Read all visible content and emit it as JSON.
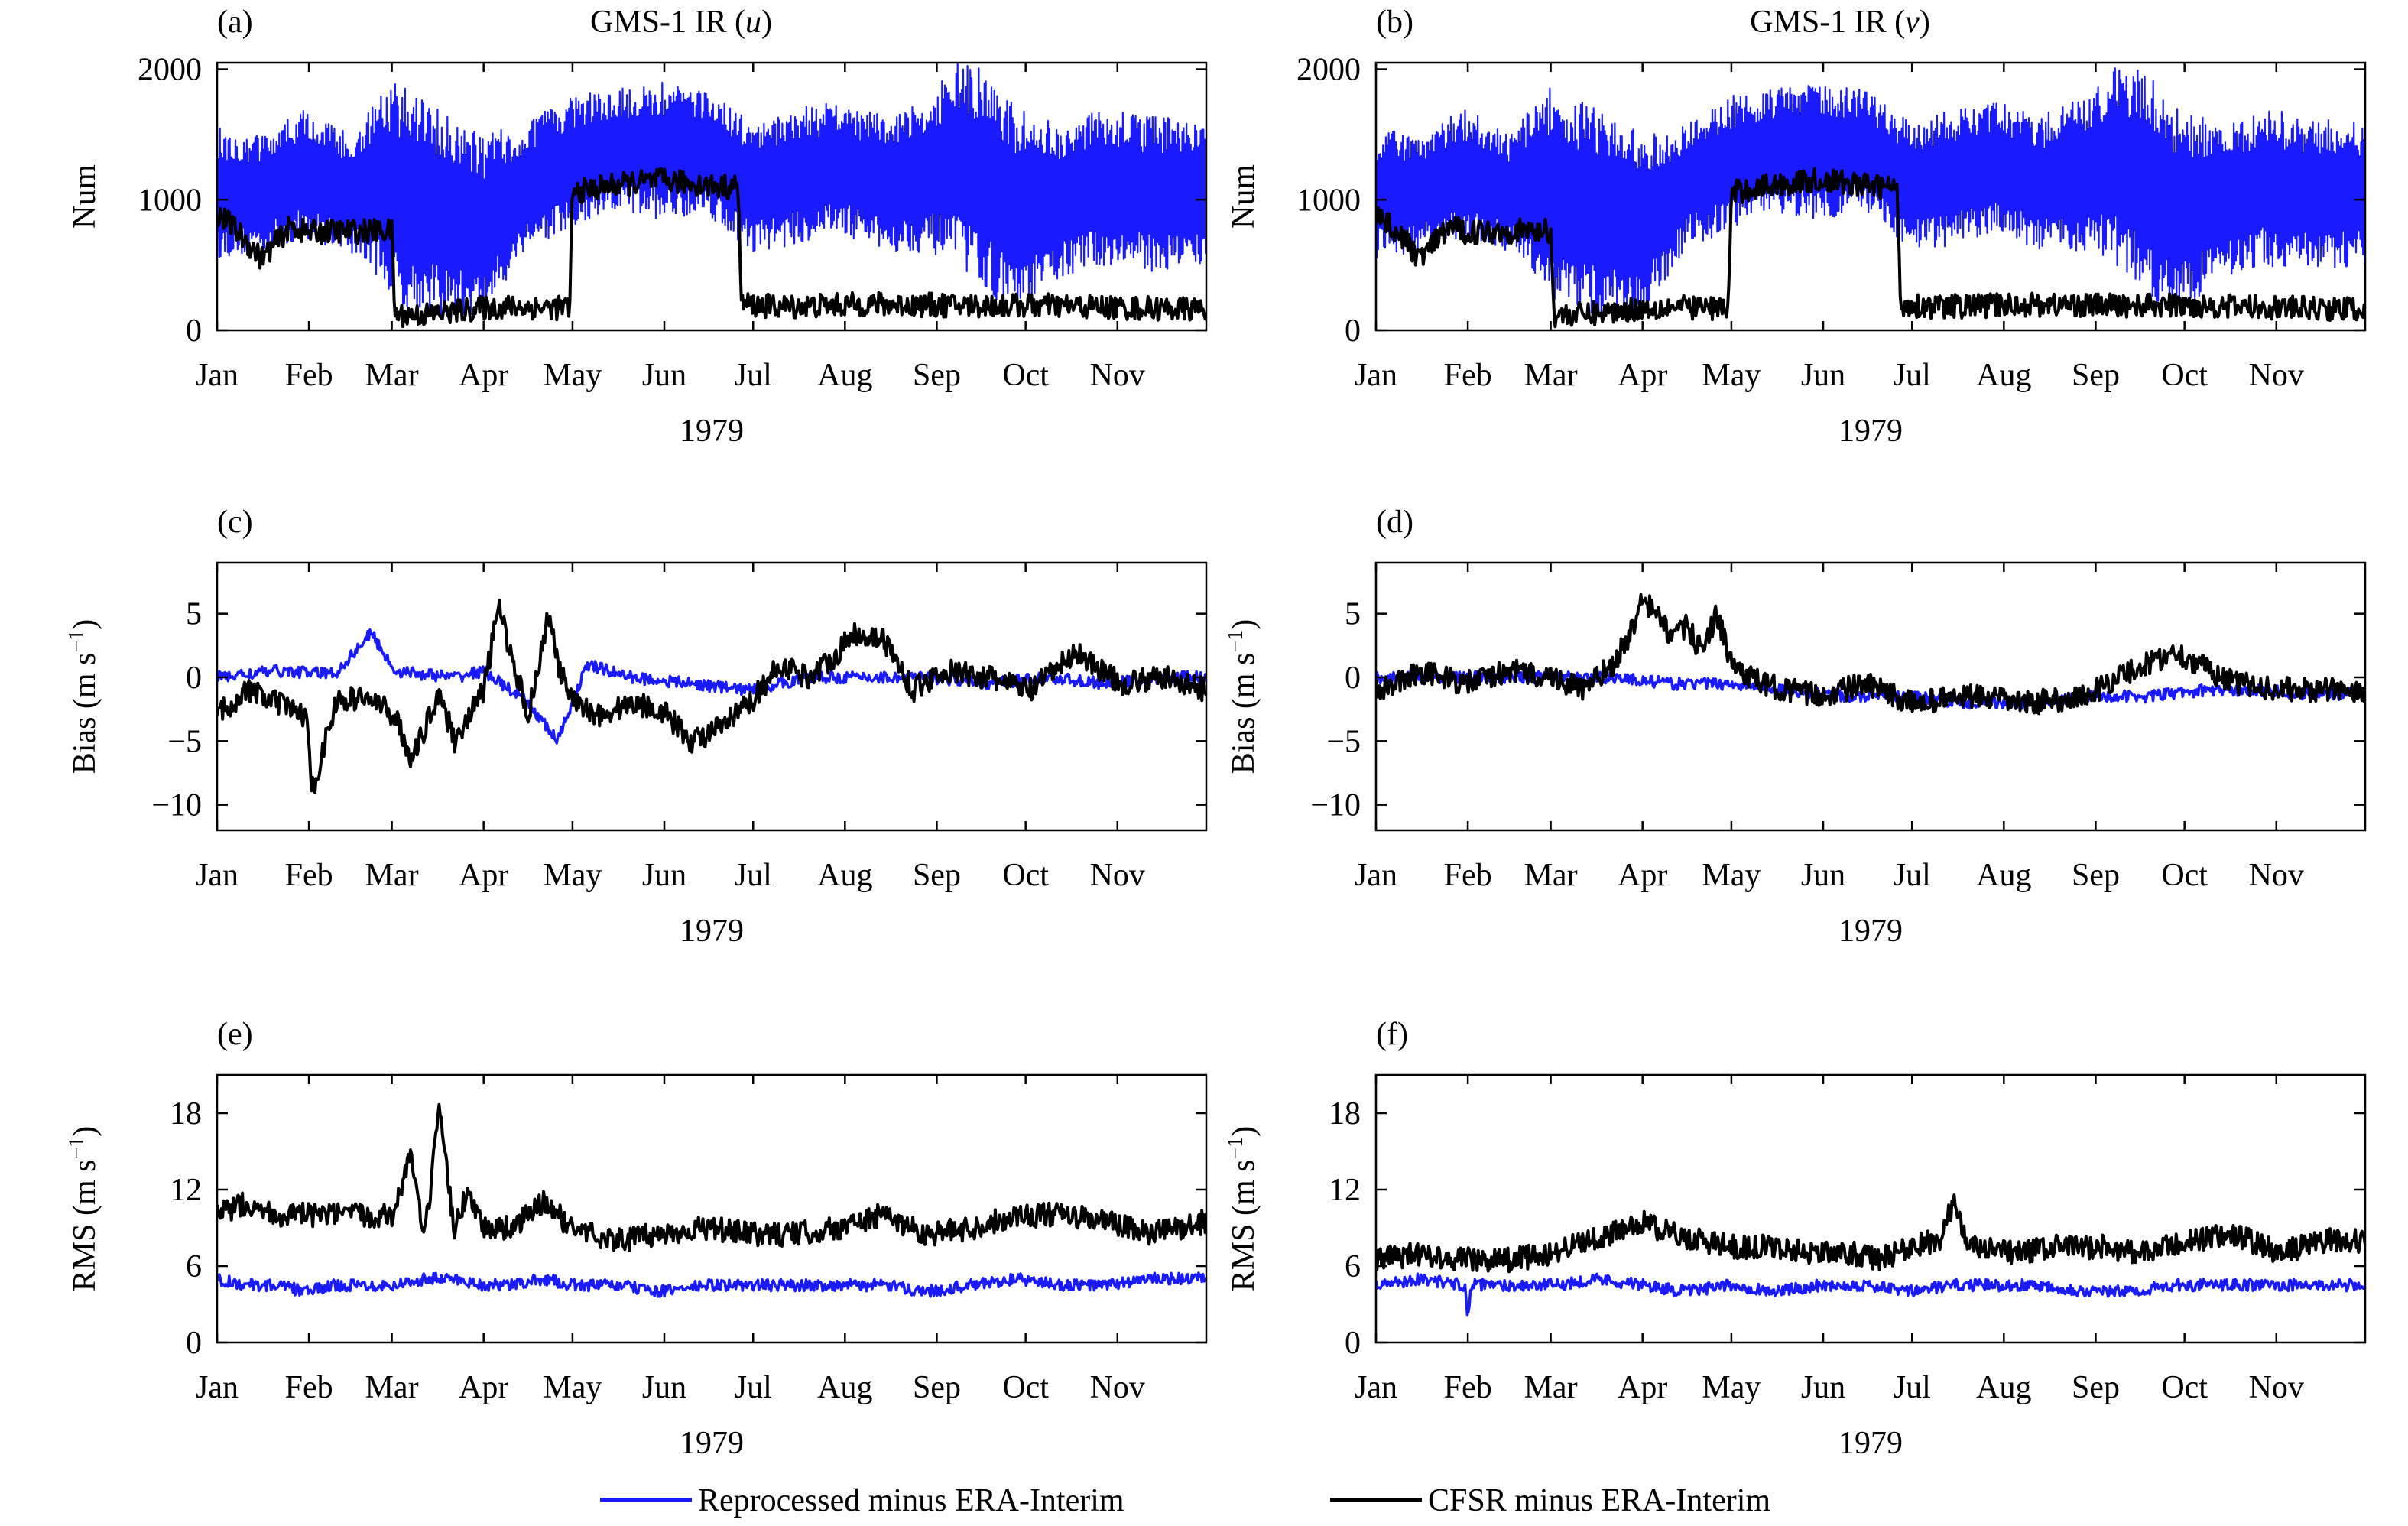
{
  "figure": {
    "year_label": "1979"
  },
  "colors": {
    "reprocessed": "#1a1aff",
    "cfsr": "#000000"
  },
  "legend": [
    {
      "label": "Reprocessed minus ERA-Interim",
      "color": "#1a1aff"
    },
    {
      "label": "CFSR minus ERA-Interim",
      "color": "#000000"
    }
  ],
  "chart_data": [
    {
      "panel": "(a)",
      "title": "GMS-1 IR (",
      "title_var": "u",
      "title_end": ")",
      "type": "line",
      "ylabel": "Num",
      "xlabel": "1979",
      "ylim": [
        0,
        2050
      ],
      "yticks": [
        0,
        1000,
        2000
      ],
      "xlim": [
        0,
        334
      ],
      "xtick_days": [
        0,
        31,
        59,
        90,
        120,
        151,
        181,
        212,
        243,
        273,
        304
      ],
      "xtick_labels": [
        "Jan",
        "Feb",
        "Mar",
        "Apr",
        "May",
        "Jun",
        "Jul",
        "Aug",
        "Sep",
        "Oct",
        "Nov"
      ],
      "series": [
        {
          "key": "reprocessed",
          "x": [
            0,
            15,
            30,
            45,
            55,
            60,
            75,
            90,
            105,
            120,
            135,
            150,
            165,
            180,
            195,
            210,
            225,
            240,
            250,
            260,
            270,
            285,
            300,
            315,
            334
          ],
          "y_low": [
            550,
            600,
            700,
            600,
            400,
            200,
            100,
            100,
            650,
            750,
            900,
            850,
            900,
            600,
            650,
            750,
            600,
            600,
            500,
            300,
            100,
            400,
            500,
            450,
            500
          ],
          "y_high": [
            1550,
            1500,
            1700,
            1500,
            1800,
            1900,
            1700,
            1500,
            1600,
            1800,
            1850,
            1900,
            1850,
            1600,
            1700,
            1750,
            1650,
            1800,
            2050,
            2000,
            1700,
            1600,
            1700,
            1650,
            1600
          ]
        },
        {
          "key": "cfsr",
          "x": [
            0,
            5,
            15,
            25,
            30,
            40,
            50,
            59,
            60,
            70,
            90,
            100,
            119,
            120,
            130,
            150,
            170,
            176,
            177,
            190,
            220,
            250,
            280,
            310,
            334
          ],
          "y": [
            900,
            800,
            550,
            800,
            750,
            760,
            760,
            760,
            120,
            120,
            170,
            180,
            170,
            1050,
            1100,
            1150,
            1100,
            1100,
            200,
            180,
            200,
            190,
            190,
            170,
            160
          ]
        }
      ]
    },
    {
      "panel": "(b)",
      "title": "GMS-1 IR (",
      "title_var": "v",
      "title_end": ")",
      "type": "line",
      "ylabel": "Num",
      "xlabel": "1979",
      "ylim": [
        0,
        2050
      ],
      "yticks": [
        0,
        1000,
        2000
      ],
      "xlim": [
        0,
        334
      ],
      "xtick_days": [
        0,
        31,
        59,
        90,
        120,
        151,
        181,
        212,
        243,
        273,
        304
      ],
      "xtick_labels": [
        "Jan",
        "Feb",
        "Mar",
        "Apr",
        "May",
        "Jun",
        "Jul",
        "Aug",
        "Sep",
        "Oct",
        "Nov"
      ],
      "series": [
        {
          "key": "reprocessed",
          "x": [
            0,
            15,
            30,
            45,
            55,
            60,
            75,
            90,
            105,
            120,
            135,
            150,
            165,
            180,
            195,
            210,
            225,
            240,
            250,
            260,
            270,
            285,
            300,
            315,
            334
          ],
          "y_low": [
            550,
            600,
            700,
            600,
            400,
            200,
            100,
            100,
            650,
            750,
            900,
            850,
            900,
            600,
            650,
            750,
            600,
            600,
            500,
            300,
            100,
            400,
            500,
            450,
            500
          ],
          "y_high": [
            1550,
            1500,
            1700,
            1500,
            1800,
            1900,
            1700,
            1500,
            1600,
            1800,
            1850,
            1900,
            1850,
            1600,
            1700,
            1750,
            1650,
            1800,
            2050,
            2000,
            1700,
            1600,
            1700,
            1650,
            1600
          ]
        },
        {
          "key": "cfsr",
          "x": [
            0,
            5,
            15,
            25,
            30,
            40,
            50,
            59,
            60,
            70,
            90,
            100,
            119,
            120,
            130,
            150,
            170,
            176,
            177,
            190,
            220,
            250,
            280,
            310,
            334
          ],
          "y": [
            900,
            800,
            550,
            800,
            750,
            760,
            760,
            760,
            120,
            120,
            170,
            180,
            170,
            1050,
            1100,
            1150,
            1100,
            1100,
            200,
            180,
            200,
            190,
            190,
            170,
            160
          ]
        }
      ]
    },
    {
      "panel": "(c)",
      "title": "",
      "type": "line",
      "ylabel": "Bias (m s",
      "ylabel_sup": "−1",
      "ylabel_end": ")",
      "xlabel": "1979",
      "ylim": [
        -12,
        9
      ],
      "yticks": [
        -10,
        -5,
        0,
        5
      ],
      "xlim": [
        0,
        334
      ],
      "xtick_days": [
        0,
        31,
        59,
        90,
        120,
        151,
        181,
        212,
        243,
        273,
        304
      ],
      "xtick_labels": [
        "Jan",
        "Feb",
        "Mar",
        "Apr",
        "May",
        "Jun",
        "Jul",
        "Aug",
        "Sep",
        "Oct",
        "Nov"
      ],
      "series": [
        {
          "key": "reprocessed",
          "x": [
            0,
            20,
            40,
            52,
            60,
            80,
            90,
            105,
            115,
            125,
            140,
            160,
            180,
            200,
            220,
            240,
            260,
            280,
            300,
            320,
            334
          ],
          "y": [
            0,
            0.5,
            0.3,
            3.5,
            0.5,
            0,
            0.5,
            -2,
            -5,
            1,
            0,
            -0.5,
            -1,
            0,
            0,
            0,
            -0.5,
            0,
            -0.5,
            0,
            0
          ]
        },
        {
          "key": "cfsr",
          "x": [
            0,
            10,
            20,
            30,
            32,
            40,
            50,
            60,
            66,
            75,
            80,
            90,
            95,
            105,
            112,
            115,
            120,
            130,
            140,
            150,
            160,
            170,
            180,
            190,
            200,
            210,
            215,
            225,
            235,
            245,
            260,
            275,
            290,
            305,
            320,
            334
          ],
          "y": [
            -3,
            -1,
            -2,
            -3,
            -9,
            -2,
            -1.5,
            -3,
            -6.5,
            -1,
            -5,
            -1,
            5.5,
            -3,
            5,
            1,
            -2,
            -3,
            -2,
            -2.5,
            -5,
            -4,
            -2,
            1,
            0,
            2,
            3.5,
            3,
            -1,
            0.5,
            0,
            -1,
            2,
            -0.5,
            0,
            -1
          ]
        }
      ]
    },
    {
      "panel": "(d)",
      "title": "",
      "type": "line",
      "ylabel": "Bias (m s",
      "ylabel_sup": "−1",
      "ylabel_end": ")",
      "xlabel": "1979",
      "ylim": [
        -12,
        9
      ],
      "yticks": [
        -10,
        -5,
        0,
        5
      ],
      "xlim": [
        0,
        334
      ],
      "xtick_days": [
        0,
        31,
        59,
        90,
        120,
        151,
        181,
        212,
        243,
        273,
        304
      ],
      "xtick_labels": [
        "Jan",
        "Feb",
        "Mar",
        "Apr",
        "May",
        "Jun",
        "Jul",
        "Aug",
        "Sep",
        "Oct",
        "Nov"
      ],
      "series": [
        {
          "key": "reprocessed",
          "x": [
            0,
            20,
            40,
            60,
            80,
            100,
            120,
            140,
            160,
            180,
            200,
            220,
            240,
            260,
            280,
            300,
            320,
            334
          ],
          "y": [
            0,
            0,
            0,
            0,
            0,
            -0.5,
            -0.5,
            -1,
            -1.5,
            -1.5,
            -2,
            -2,
            -1.5,
            -1.5,
            -1,
            -1,
            -1.5,
            -1
          ]
        },
        {
          "key": "cfsr",
          "x": [
            0,
            15,
            30,
            45,
            60,
            70,
            80,
            85,
            90,
            95,
            100,
            105,
            110,
            115,
            120,
            130,
            150,
            165,
            180,
            200,
            220,
            240,
            250,
            270,
            290,
            310,
            334
          ],
          "y": [
            -1,
            0.5,
            -0.5,
            0.5,
            0,
            -1,
            1,
            3,
            6,
            5,
            3,
            4,
            2,
            5,
            1,
            -0.5,
            -1.5,
            -0.5,
            -2,
            -1.5,
            -2,
            -1.5,
            0,
            2,
            -0.5,
            -1,
            -1
          ]
        }
      ]
    },
    {
      "panel": "(e)",
      "title": "",
      "type": "line",
      "ylabel": "RMS (m s",
      "ylabel_sup": "−1",
      "ylabel_end": ")",
      "xlabel": "1979",
      "ylim": [
        0,
        21
      ],
      "yticks": [
        0,
        6,
        12,
        18
      ],
      "xlim": [
        0,
        334
      ],
      "xtick_days": [
        0,
        31,
        59,
        90,
        120,
        151,
        181,
        212,
        243,
        273,
        304
      ],
      "xtick_labels": [
        "Jan",
        "Feb",
        "Mar",
        "Apr",
        "May",
        "Jun",
        "Jul",
        "Aug",
        "Sep",
        "Oct",
        "Nov"
      ],
      "series": [
        {
          "key": "reprocessed",
          "x": [
            0,
            10,
            20,
            30,
            40,
            50,
            60,
            70,
            80,
            90,
            100,
            110,
            120,
            135,
            150,
            165,
            180,
            195,
            210,
            225,
            240,
            255,
            270,
            285,
            300,
            315,
            334
          ],
          "y": [
            5,
            4.5,
            4.5,
            4,
            4.5,
            4.5,
            4.5,
            5,
            5,
            4.5,
            4.5,
            5,
            4.5,
            4.5,
            4,
            4.5,
            4.5,
            4.5,
            4.5,
            4.5,
            4,
            4.5,
            5,
            4.5,
            4.5,
            5,
            5
          ]
        },
        {
          "key": "cfsr",
          "x": [
            0,
            10,
            20,
            31,
            40,
            50,
            60,
            65,
            70,
            75,
            80,
            85,
            90,
            100,
            110,
            120,
            135,
            150,
            165,
            180,
            195,
            210,
            225,
            240,
            255,
            270,
            285,
            300,
            315,
            334
          ],
          "y": [
            10,
            11,
            10,
            10,
            10,
            10,
            10,
            15,
            8,
            18,
            9,
            12,
            9,
            9,
            11,
            9,
            8,
            8.5,
            9,
            8.5,
            8.5,
            9,
            10,
            8.5,
            9,
            10,
            10,
            9.5,
            8.5,
            9.5
          ]
        }
      ]
    },
    {
      "panel": "(f)",
      "title": "",
      "type": "line",
      "ylabel": "RMS (m s",
      "ylabel_sup": "−1",
      "ylabel_end": ")",
      "xlabel": "1979",
      "ylim": [
        0,
        21
      ],
      "yticks": [
        0,
        6,
        12,
        18
      ],
      "xlim": [
        0,
        334
      ],
      "xtick_days": [
        0,
        31,
        59,
        90,
        120,
        151,
        181,
        212,
        243,
        273,
        304
      ],
      "xtick_labels": [
        "Jan",
        "Feb",
        "Mar",
        "Apr",
        "May",
        "Jun",
        "Jul",
        "Aug",
        "Sep",
        "Oct",
        "Nov"
      ],
      "series": [
        {
          "key": "reprocessed",
          "x": [
            0,
            15,
            30,
            31,
            32,
            45,
            60,
            75,
            90,
            105,
            120,
            135,
            150,
            165,
            180,
            195,
            210,
            225,
            240,
            255,
            270,
            285,
            300,
            315,
            334
          ],
          "y": [
            4.5,
            5,
            4.5,
            1.5,
            4.5,
            4.5,
            4.5,
            5,
            4.5,
            4,
            4.5,
            4,
            4.5,
            4.5,
            4,
            4.5,
            4.5,
            4.5,
            4,
            4,
            4.5,
            4.5,
            4.5,
            4.5,
            4.5
          ]
        },
        {
          "key": "cfsr",
          "x": [
            0,
            15,
            30,
            45,
            60,
            70,
            80,
            90,
            100,
            110,
            120,
            135,
            150,
            160,
            170,
            180,
            190,
            195,
            200,
            215,
            230,
            245,
            260,
            275,
            290,
            305,
            320,
            334
          ],
          "y": [
            6.5,
            7,
            6.5,
            6.5,
            7,
            8,
            8.5,
            9.5,
            8.5,
            8,
            7.5,
            7.5,
            7,
            7,
            6.5,
            7.5,
            8,
            11,
            7.5,
            7,
            7.5,
            7.5,
            7,
            8,
            8.5,
            7,
            8,
            8
          ]
        }
      ]
    }
  ]
}
